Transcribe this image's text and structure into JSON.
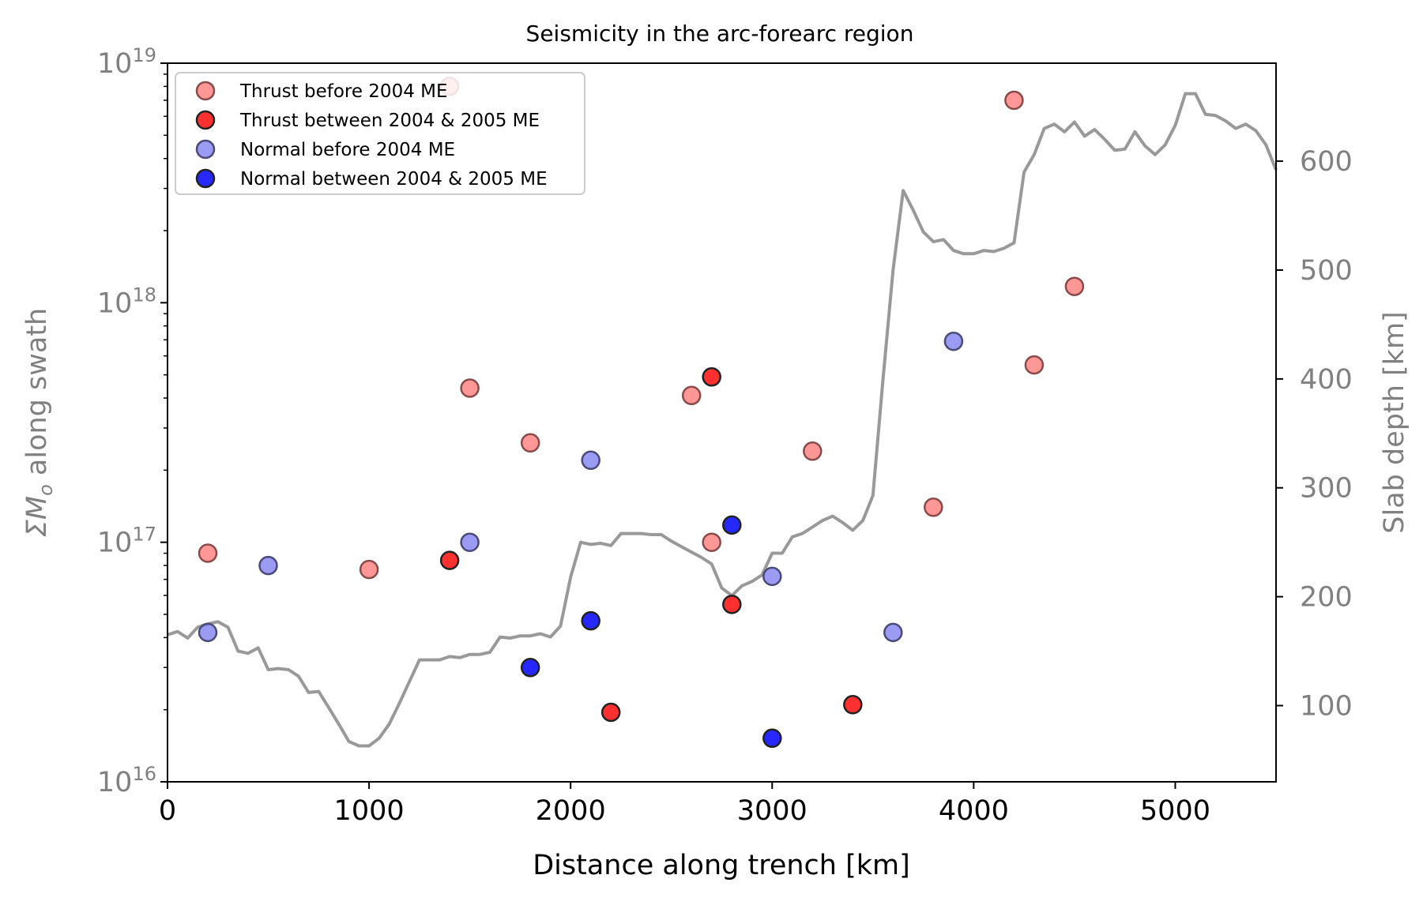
{
  "chart_data": {
    "type": "scatter",
    "title": "Seismicity in the arc-forearc region",
    "xlabel": "Distance along trench [km]",
    "ylabel_left": "ΣM",
    "ylabel_left_sub": "o",
    "ylabel_left_rest": " along swath",
    "ylabel_right": "Slab depth [km]",
    "xlim": [
      0,
      5500
    ],
    "ylim_left": [
      1e+16,
      1e+19
    ],
    "ylim_right": [
      30,
      690
    ],
    "y_left_scale": "log",
    "grid": false,
    "legend_position": "upper-left",
    "x_ticks": [
      0,
      1000,
      2000,
      3000,
      4000,
      5000
    ],
    "y_left_ticks": [
      {
        "value": 1e+16,
        "base": "10",
        "exp": "16"
      },
      {
        "value": 1e+17,
        "base": "10",
        "exp": "17"
      },
      {
        "value": 1e+18,
        "base": "10",
        "exp": "18"
      },
      {
        "value": 1e+19,
        "base": "10",
        "exp": "19"
      }
    ],
    "y_right_ticks": [
      100,
      200,
      300,
      400,
      500,
      600
    ],
    "series": [
      {
        "name": "Thrust before 2004 ME",
        "color": "#ff6b6b",
        "opacity": 0.7,
        "edge": "#8a4a4a",
        "points": [
          {
            "x": 200,
            "y": 9e+16
          },
          {
            "x": 1000,
            "y": 7.7e+16
          },
          {
            "x": 1400,
            "y": 8e+18
          },
          {
            "x": 1500,
            "y": 4.4e+17
          },
          {
            "x": 1800,
            "y": 2.6e+17
          },
          {
            "x": 2600,
            "y": 4.1e+17
          },
          {
            "x": 2700,
            "y": 1e+17
          },
          {
            "x": 3200,
            "y": 2.4e+17
          },
          {
            "x": 3800,
            "y": 1.4e+17
          },
          {
            "x": 4200,
            "y": 7e+18
          },
          {
            "x": 4300,
            "y": 5.5e+17
          },
          {
            "x": 4500,
            "y": 1.17e+18
          }
        ]
      },
      {
        "name": "Thrust between 2004 & 2005 ME",
        "color": "#ff1a1a",
        "opacity": 0.9,
        "edge": "#222222",
        "points": [
          {
            "x": 1400,
            "y": 8.4e+16
          },
          {
            "x": 2200,
            "y": 1.95e+16
          },
          {
            "x": 2700,
            "y": 4.9e+17
          },
          {
            "x": 2800,
            "y": 5.5e+16
          },
          {
            "x": 3400,
            "y": 2.1e+16
          }
        ]
      },
      {
        "name": "Normal before 2004 ME",
        "color": "#7070f0",
        "opacity": 0.7,
        "edge": "#4a4a7a",
        "points": [
          {
            "x": 200,
            "y": 4.2e+16
          },
          {
            "x": 500,
            "y": 8e+16
          },
          {
            "x": 1500,
            "y": 1e+17
          },
          {
            "x": 2100,
            "y": 2.2e+17
          },
          {
            "x": 3000,
            "y": 7.2e+16
          },
          {
            "x": 3600,
            "y": 4.2e+16
          },
          {
            "x": 3900,
            "y": 6.9e+17
          }
        ]
      },
      {
        "name": "Normal between 2004 & 2005 ME",
        "color": "#1010ff",
        "opacity": 0.9,
        "edge": "#222222",
        "points": [
          {
            "x": 1800,
            "y": 3e+16
          },
          {
            "x": 2100,
            "y": 4.7e+16
          },
          {
            "x": 2800,
            "y": 1.18e+17
          },
          {
            "x": 3000,
            "y": 1.52e+16
          }
        ]
      }
    ],
    "slab_depth_line": {
      "color": "#999999",
      "axis": "right",
      "points": [
        [
          0,
          165
        ],
        [
          50,
          168
        ],
        [
          100,
          162
        ],
        [
          150,
          172
        ],
        [
          200,
          175
        ],
        [
          250,
          177
        ],
        [
          300,
          172
        ],
        [
          350,
          150
        ],
        [
          400,
          148
        ],
        [
          450,
          153
        ],
        [
          500,
          133
        ],
        [
          550,
          134
        ],
        [
          600,
          133
        ],
        [
          650,
          127
        ],
        [
          700,
          112
        ],
        [
          750,
          113
        ],
        [
          800,
          98
        ],
        [
          850,
          83
        ],
        [
          900,
          67
        ],
        [
          950,
          63
        ],
        [
          1000,
          63
        ],
        [
          1050,
          70
        ],
        [
          1100,
          83
        ],
        [
          1150,
          102
        ],
        [
          1200,
          122
        ],
        [
          1250,
          142
        ],
        [
          1300,
          142
        ],
        [
          1350,
          142
        ],
        [
          1400,
          145
        ],
        [
          1450,
          144
        ],
        [
          1500,
          147
        ],
        [
          1550,
          147
        ],
        [
          1600,
          149
        ],
        [
          1650,
          163
        ],
        [
          1700,
          162
        ],
        [
          1750,
          164
        ],
        [
          1800,
          164
        ],
        [
          1850,
          166
        ],
        [
          1900,
          163
        ],
        [
          1950,
          173
        ],
        [
          2000,
          218
        ],
        [
          2050,
          250
        ],
        [
          2100,
          248
        ],
        [
          2150,
          249
        ],
        [
          2200,
          247
        ],
        [
          2250,
          258
        ],
        [
          2300,
          258
        ],
        [
          2350,
          258
        ],
        [
          2400,
          257
        ],
        [
          2450,
          257
        ],
        [
          2500,
          251
        ],
        [
          2550,
          246
        ],
        [
          2600,
          241
        ],
        [
          2650,
          236
        ],
        [
          2700,
          230
        ],
        [
          2750,
          208
        ],
        [
          2800,
          201
        ],
        [
          2850,
          210
        ],
        [
          2900,
          214
        ],
        [
          2950,
          220
        ],
        [
          3000,
          240
        ],
        [
          3050,
          240
        ],
        [
          3100,
          255
        ],
        [
          3150,
          258
        ],
        [
          3200,
          264
        ],
        [
          3250,
          270
        ],
        [
          3300,
          274
        ],
        [
          3350,
          268
        ],
        [
          3400,
          261
        ],
        [
          3450,
          270
        ],
        [
          3500,
          293
        ],
        [
          3550,
          400
        ],
        [
          3600,
          500
        ],
        [
          3650,
          573
        ],
        [
          3700,
          555
        ],
        [
          3750,
          535
        ],
        [
          3800,
          526
        ],
        [
          3850,
          528
        ],
        [
          3900,
          518
        ],
        [
          3950,
          515
        ],
        [
          4000,
          515
        ],
        [
          4050,
          518
        ],
        [
          4100,
          517
        ],
        [
          4150,
          520
        ],
        [
          4200,
          525
        ],
        [
          4250,
          590
        ],
        [
          4300,
          606
        ],
        [
          4350,
          630
        ],
        [
          4400,
          634
        ],
        [
          4450,
          627
        ],
        [
          4500,
          636
        ],
        [
          4550,
          623
        ],
        [
          4600,
          629
        ],
        [
          4650,
          620
        ],
        [
          4700,
          610
        ],
        [
          4750,
          611
        ],
        [
          4800,
          627
        ],
        [
          4850,
          614
        ],
        [
          4900,
          606
        ],
        [
          4950,
          615
        ],
        [
          5000,
          633
        ],
        [
          5050,
          662
        ],
        [
          5100,
          662
        ],
        [
          5150,
          643
        ],
        [
          5200,
          642
        ],
        [
          5250,
          637
        ],
        [
          5300,
          630
        ],
        [
          5350,
          634
        ],
        [
          5400,
          628
        ],
        [
          5450,
          615
        ],
        [
          5500,
          592
        ]
      ]
    }
  }
}
